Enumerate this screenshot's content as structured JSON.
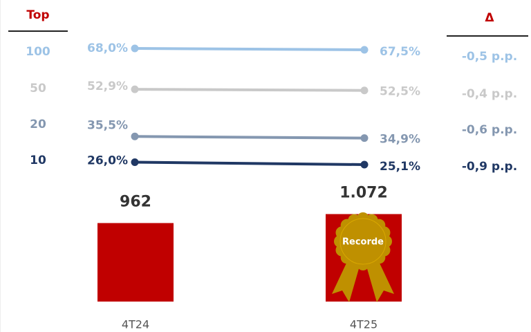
{
  "chart_data": {
    "type": "line",
    "group_title": "Top",
    "delta_title": "Δ",
    "categories": [
      "4T24",
      "4T25"
    ],
    "series": [
      {
        "name": "100",
        "color": "#9dc3e6",
        "values": [
          68.0,
          67.5
        ],
        "value_labels": [
          "68,0%",
          "67,5%"
        ],
        "delta": -0.5,
        "delta_label": "-0,5 p.p."
      },
      {
        "name": "50",
        "color": "#c9c9c9",
        "values": [
          52.9,
          52.5
        ],
        "value_labels": [
          "52,9%",
          "52,5%"
        ],
        "delta": -0.4,
        "delta_label": "-0,4 p.p."
      },
      {
        "name": "20",
        "color": "#8497b0",
        "values": [
          35.5,
          34.9
        ],
        "value_labels": [
          "35,5%",
          "34,9%"
        ],
        "delta": -0.6,
        "delta_label": "-0,6 p.p."
      },
      {
        "name": "10",
        "color": "#203864",
        "values": [
          26.0,
          25.1
        ],
        "value_labels": [
          "26,0%",
          "25,1%"
        ],
        "delta": -0.9,
        "delta_label": "-0,9 p.p."
      }
    ],
    "bars": {
      "type": "bar",
      "color": "#c00000",
      "values": [
        962,
        1072
      ],
      "value_labels": [
        "962",
        "1.072"
      ]
    },
    "annotation": "Recorde"
  }
}
